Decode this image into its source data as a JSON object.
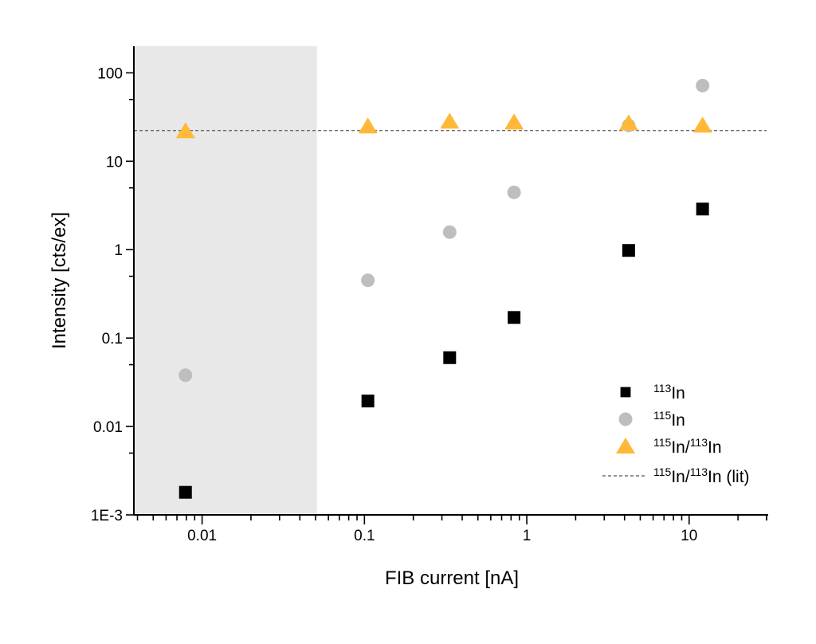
{
  "chart_data": {
    "type": "scatter",
    "title": "",
    "xlabel": "FIB current [nA]",
    "ylabel": "Intensity [cts/ex]",
    "xscale": "log",
    "yscale": "log",
    "xlim": [
      0.0038,
      30
    ],
    "ylim": [
      0.001,
      200
    ],
    "xticks": [
      {
        "v": 0.01,
        "label": "0.01"
      },
      {
        "v": 0.1,
        "label": "0.1"
      },
      {
        "v": 1,
        "label": "1"
      },
      {
        "v": 10,
        "label": "10"
      }
    ],
    "yticks": [
      {
        "v": 0.001,
        "label": "1E-3"
      },
      {
        "v": 0.01,
        "label": "0.01"
      },
      {
        "v": 0.1,
        "label": "0.1"
      },
      {
        "v": 1,
        "label": "1"
      },
      {
        "v": 10,
        "label": "10"
      },
      {
        "v": 100,
        "label": "100"
      }
    ],
    "grid": false,
    "legend_placement": "bottom-right",
    "shaded_region": {
      "x": [
        0.0038,
        0.051
      ],
      "color": "#e8e8e8"
    },
    "series": [
      {
        "name_pre": "113",
        "name_main": "In",
        "name_pre2": "",
        "name_main2": "",
        "name_suffix": "",
        "marker": "square",
        "color": "#000000",
        "x": [
          0.0079,
          0.105,
          0.335,
          0.835,
          4.24,
          12.1
        ],
        "y": [
          0.0018,
          0.0194,
          0.06,
          0.171,
          0.98,
          2.88
        ]
      },
      {
        "name_pre": "115",
        "name_main": "In",
        "name_pre2": "",
        "name_main2": "",
        "name_suffix": "",
        "marker": "circle",
        "color": "#bebebe",
        "x": [
          0.0079,
          0.105,
          0.335,
          0.835,
          4.24,
          12.1
        ],
        "y": [
          0.038,
          0.45,
          1.58,
          4.45,
          25.4,
          71.8
        ]
      },
      {
        "name_pre": "115",
        "name_main": "In/",
        "name_pre2": "113",
        "name_main2": "In",
        "name_suffix": "",
        "marker": "triangle",
        "color": "#ffb838",
        "x": [
          0.0079,
          0.105,
          0.335,
          0.835,
          4.24,
          12.1
        ],
        "y": [
          22.0,
          24.9,
          28.2,
          27.6,
          27.0,
          25.4
        ]
      },
      {
        "name_pre": "115",
        "name_main": "In/",
        "name_pre2": "113",
        "name_main2": "In",
        "name_suffix": " (lit)",
        "marker": "dashed-line",
        "color": "#555555",
        "y_const": 22.26
      }
    ]
  }
}
